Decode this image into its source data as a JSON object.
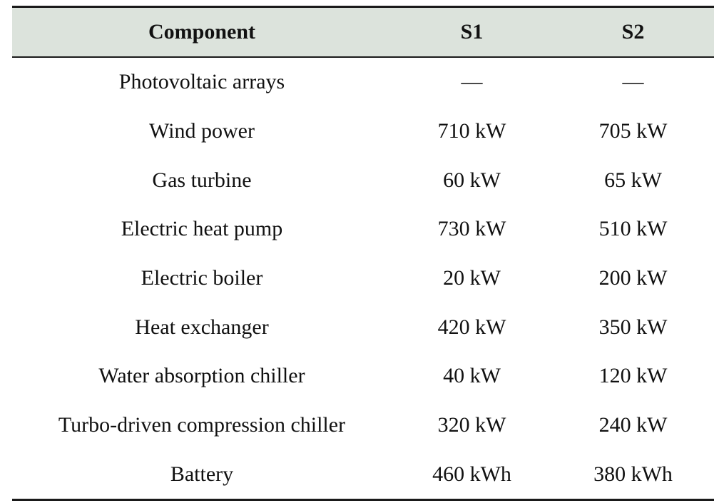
{
  "table": {
    "headers": [
      "Component",
      "S1",
      "S2"
    ],
    "rows": [
      {
        "component": "Photovoltaic arrays",
        "s1": "—",
        "s2": "—"
      },
      {
        "component": "Wind power",
        "s1": "710 kW",
        "s2": "705 kW"
      },
      {
        "component": "Gas turbine",
        "s1": "60 kW",
        "s2": "65 kW"
      },
      {
        "component": "Electric heat pump",
        "s1": "730 kW",
        "s2": "510 kW"
      },
      {
        "component": "Electric boiler",
        "s1": "20 kW",
        "s2": "200 kW"
      },
      {
        "component": "Heat exchanger",
        "s1": "420 kW",
        "s2": "350 kW"
      },
      {
        "component": "Water absorption chiller",
        "s1": "40 kW",
        "s2": "120 kW"
      },
      {
        "component": "Turbo-driven compression chiller",
        "s1": "320 kW",
        "s2": "240 kW"
      },
      {
        "component": "Battery",
        "s1": "460 kWh",
        "s2": "380 kWh"
      }
    ]
  },
  "colors": {
    "header_background": "#dce3dc",
    "rule": "#1a1a1a",
    "text": "#111111"
  }
}
